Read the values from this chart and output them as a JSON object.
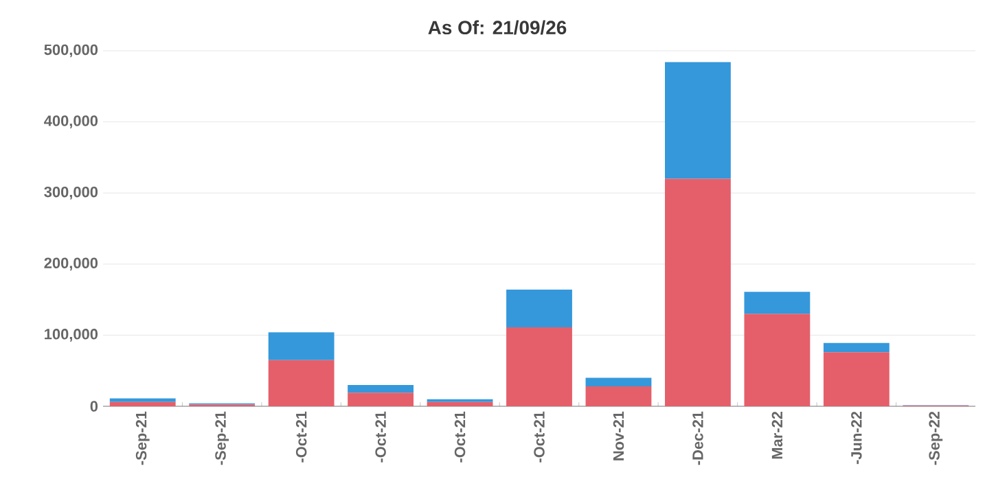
{
  "chart_data": {
    "type": "bar",
    "title": "As Of: 21/09/26",
    "categories": [
      "-Sep-21",
      "-Sep-21",
      "-Oct-21",
      "-Oct-21",
      "-Oct-21",
      "-Oct-21",
      "Nov-21",
      "-Dec-21",
      "Mar-22",
      "-Jun-22",
      "-Sep-22"
    ],
    "stacked": true,
    "series": [
      {
        "color": "#e45f6a",
        "values": [
          6000,
          2500,
          65000,
          19000,
          6000,
          111000,
          28000,
          320000,
          130000,
          76000,
          1000
        ]
      },
      {
        "color": "#3498db",
        "values": [
          5000,
          1500,
          39000,
          11000,
          4000,
          53000,
          12000,
          164000,
          31000,
          13000,
          500
        ]
      }
    ],
    "ylim": [
      0,
      500000
    ],
    "yticks": [
      {
        "value": 0,
        "label": "0"
      },
      {
        "value": 100000,
        "label": "100,000"
      },
      {
        "value": 200000,
        "label": "200,000"
      },
      {
        "value": 300000,
        "label": "300,000"
      },
      {
        "value": 400000,
        "label": "400,000"
      },
      {
        "value": 500000,
        "label": "500,000"
      }
    ],
    "grid": "y"
  }
}
